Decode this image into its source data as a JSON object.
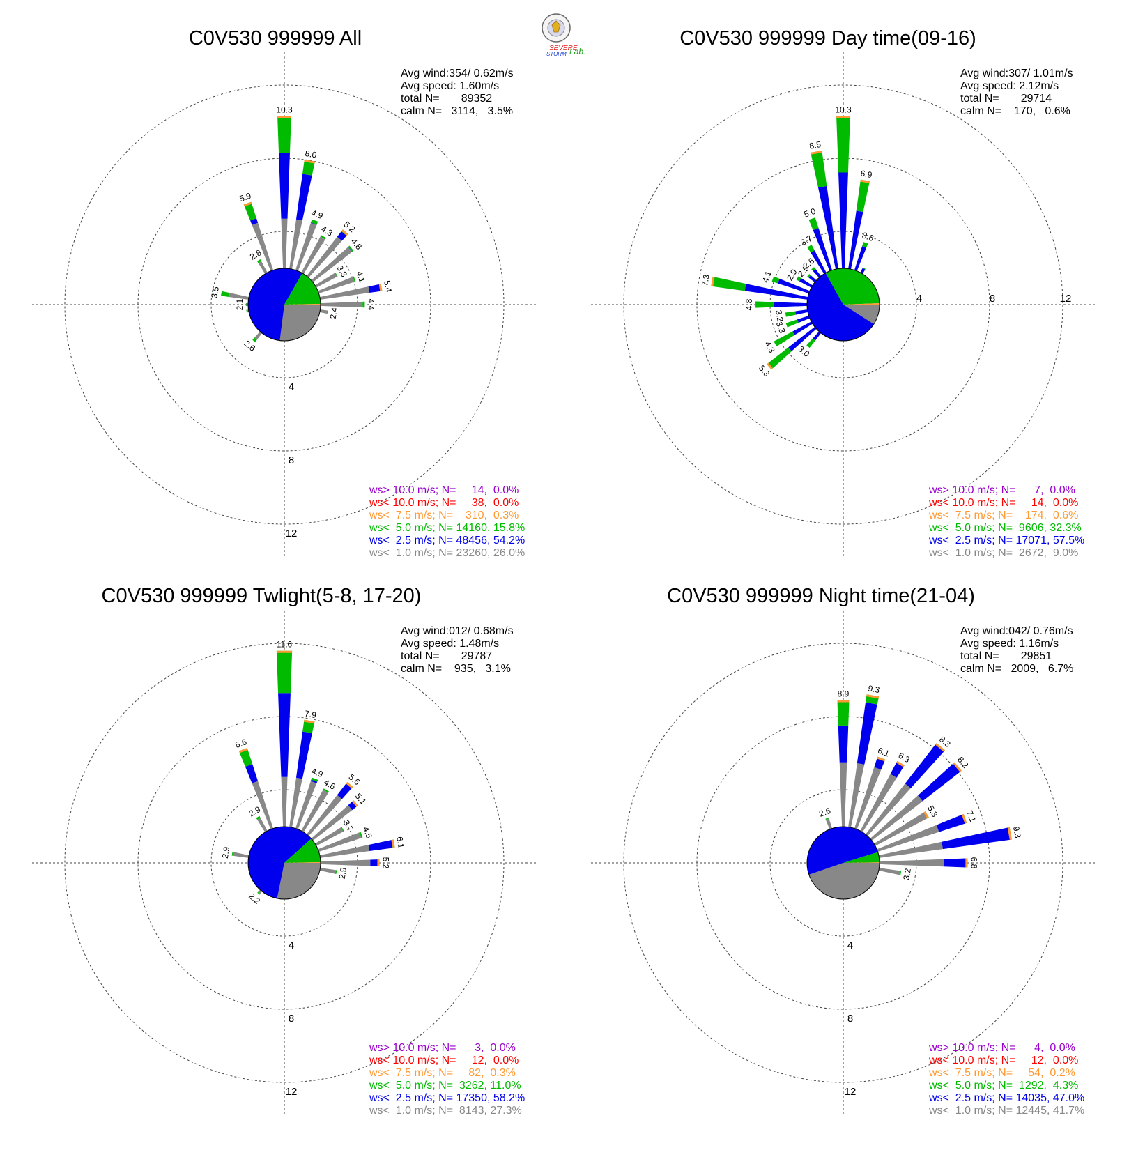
{
  "logo": {
    "line1": "SEVERE",
    "line2": "STORM",
    "lab": "Lab.",
    "colors": [
      "#e02020",
      "#2040d0",
      "#20a020"
    ]
  },
  "legend_colors": {
    "ws_gt_10": "#9900cc",
    "ws_lt_10": "#ff0000",
    "ws_lt_7_5": "#ff9933",
    "ws_lt_5": "#00bb00",
    "ws_lt_2_5": "#0000ee",
    "ws_lt_1": "#888888"
  },
  "chart_data": [
    {
      "type": "wind-rose",
      "title": "C0V530 999999 All",
      "rings": [
        4,
        8,
        12
      ],
      "ring_labels": [
        "4",
        "8",
        "12"
      ],
      "ring_label_axis": "south",
      "stats": [
        "Avg wind:354/ 0.62m/s",
        "Avg speed: 1.60m/s",
        "total N=       89352",
        "calm N=   3114,   3.5%"
      ],
      "legend": [
        {
          "text": "ws> 10.0 m/s; N=     14,  0.0%",
          "color": "#9900cc"
        },
        {
          "text": "ws< 10.0 m/s; N=     38,  0.0%",
          "color": "#ff0000"
        },
        {
          "text": "ws<  7.5 m/s; N=    310,  0.3%",
          "color": "#ff9933"
        },
        {
          "text": "ws<  5.0 m/s; N= 14160, 15.8%",
          "color": "#00bb00"
        },
        {
          "text": "ws<  2.5 m/s; N= 48456, 54.2%",
          "color": "#0000ee"
        },
        {
          "text": "ws<  1.0 m/s; N= 23260, 26.0%",
          "color": "#888888"
        }
      ],
      "center_pie_percent": [
        26.0,
        54.2,
        15.8,
        0.3,
        0.0,
        0.0
      ],
      "directions_deg": [
        0,
        10,
        20,
        30,
        40,
        50,
        60,
        70,
        80,
        90,
        100,
        110,
        120,
        130,
        140,
        150,
        160,
        170,
        180,
        190,
        200,
        210,
        220,
        230,
        240,
        250,
        260,
        270,
        280,
        290,
        300,
        310,
        320,
        330,
        340,
        350
      ],
      "totals": [
        10.3,
        8.0,
        4.9,
        4.3,
        5.2,
        4.8,
        3.3,
        4.1,
        5.4,
        4.4,
        2.4,
        1.7,
        1.5,
        1.3,
        1.3,
        1.2,
        1.2,
        1.2,
        1.2,
        1.3,
        1.4,
        1.8,
        2.6,
        1.9,
        1.8,
        1.7,
        2.1,
        2.1,
        3.5,
        1.6,
        1.6,
        1.7,
        2.0,
        2.8,
        5.9,
        1.8
      ],
      "green_fraction": [
        0.24,
        0.13,
        0.06,
        0.04,
        0.04,
        0.03,
        0.03,
        0.03,
        0.03,
        0.05,
        0.08,
        0.1,
        0.1,
        0.1,
        0.1,
        0.1,
        0.1,
        0.1,
        0.1,
        0.12,
        0.15,
        0.2,
        0.27,
        0.2,
        0.18,
        0.18,
        0.2,
        0.2,
        0.29,
        0.14,
        0.14,
        0.15,
        0.17,
        0.14,
        0.24,
        0.13
      ],
      "gray_radius": 4.7,
      "labels": [
        {
          "dir": 0,
          "text": "10.3"
        },
        {
          "dir": 10,
          "text": "8.0"
        },
        {
          "dir": 20,
          "text": "4.9"
        },
        {
          "dir": 30,
          "text": "4.3"
        },
        {
          "dir": 40,
          "text": "5.2"
        },
        {
          "dir": 50,
          "text": "4.8"
        },
        {
          "dir": 60,
          "text": "3.3"
        },
        {
          "dir": 70,
          "text": "4.1"
        },
        {
          "dir": 80,
          "text": "5.4"
        },
        {
          "dir": 90,
          "text": "4.4"
        },
        {
          "dir": 100,
          "text": "2.4"
        },
        {
          "dir": 220,
          "text": "2.6"
        },
        {
          "dir": 270,
          "text": "2.1"
        },
        {
          "dir": 280,
          "text": "3.5"
        },
        {
          "dir": 330,
          "text": "2.8"
        },
        {
          "dir": 340,
          "text": "5.9"
        }
      ]
    },
    {
      "type": "wind-rose",
      "title": "C0V530 999999 Day time(09-16)",
      "rings": [
        4,
        8,
        12
      ],
      "ring_labels": [
        "4",
        "8",
        "12"
      ],
      "ring_label_axis": "east",
      "stats": [
        "Avg wind:307/ 1.01m/s",
        "Avg speed: 2.12m/s",
        "total N=       29714",
        "calm N=    170,   0.6%"
      ],
      "legend": [
        {
          "text": "ws> 10.0 m/s; N=      7,  0.0%",
          "color": "#9900cc"
        },
        {
          "text": "ws< 10.0 m/s; N=     14,  0.0%",
          "color": "#ff0000"
        },
        {
          "text": "ws<  7.5 m/s; N=    174,  0.6%",
          "color": "#ff9933"
        },
        {
          "text": "ws<  5.0 m/s; N=  9606, 32.3%",
          "color": "#00bb00"
        },
        {
          "text": "ws<  2.5 m/s; N= 17071, 57.5%",
          "color": "#0000ee"
        },
        {
          "text": "ws<  1.0 m/s; N=  2672,  9.0%",
          "color": "#888888"
        }
      ],
      "center_pie_percent": [
        9.0,
        57.5,
        32.3,
        0.6,
        0.0,
        0.0
      ],
      "directions_deg": [
        0,
        10,
        20,
        30,
        40,
        50,
        60,
        70,
        80,
        90,
        100,
        110,
        120,
        130,
        140,
        150,
        160,
        170,
        180,
        190,
        200,
        210,
        220,
        230,
        240,
        250,
        260,
        270,
        280,
        290,
        300,
        310,
        320,
        330,
        340,
        350
      ],
      "totals": [
        10.3,
        6.9,
        3.6,
        2.3,
        1.6,
        1.4,
        1.2,
        1.2,
        1.3,
        1.3,
        1.3,
        1.3,
        1.2,
        1.2,
        1.2,
        1.2,
        1.2,
        1.3,
        1.3,
        1.4,
        1.5,
        2.0,
        3.0,
        5.3,
        4.3,
        3.3,
        3.2,
        4.8,
        7.3,
        4.1,
        2.9,
        2.5,
        2.6,
        3.7,
        5.0,
        8.5
      ],
      "green_fraction": [
        0.37,
        0.35,
        0.15,
        0.12,
        0.12,
        0.1,
        0.1,
        0.1,
        0.1,
        0.1,
        0.15,
        0.2,
        0.25,
        0.3,
        0.3,
        0.3,
        0.3,
        0.3,
        0.35,
        0.4,
        0.4,
        0.45,
        0.5,
        0.45,
        0.5,
        0.5,
        0.45,
        0.35,
        0.35,
        0.16,
        0.2,
        0.2,
        0.2,
        0.2,
        0.2,
        0.3
      ],
      "gray_radius": 1.8,
      "labels": [
        {
          "dir": 0,
          "text": "10.3"
        },
        {
          "dir": 20,
          "text": "3.6"
        },
        {
          "dir": 10,
          "text": "6.9"
        },
        {
          "dir": 220,
          "text": "3.0"
        },
        {
          "dir": 230,
          "text": "5.3"
        },
        {
          "dir": 240,
          "text": "4.3"
        },
        {
          "dir": 250,
          "text": "3.3"
        },
        {
          "dir": 260,
          "text": "3.2"
        },
        {
          "dir": 270,
          "text": "4.8"
        },
        {
          "dir": 280,
          "text": "7.3"
        },
        {
          "dir": 290,
          "text": "4.1"
        },
        {
          "dir": 300,
          "text": "2.9"
        },
        {
          "dir": 310,
          "text": "2.5"
        },
        {
          "dir": 320,
          "text": "2.6"
        },
        {
          "dir": 330,
          "text": "3.7"
        },
        {
          "dir": 340,
          "text": "5.0"
        },
        {
          "dir": 350,
          "text": "8.5"
        }
      ]
    },
    {
      "type": "wind-rose",
      "title": "C0V530 999999 Twlight(5-8, 17-20)",
      "rings": [
        4,
        8,
        12
      ],
      "ring_labels": [
        "4",
        "8",
        "12"
      ],
      "ring_label_axis": "south",
      "stats": [
        "Avg wind:012/ 0.68m/s",
        "Avg speed: 1.48m/s",
        "total N=       29787",
        "calm N=    935,   3.1%"
      ],
      "legend": [
        {
          "text": "ws> 10.0 m/s; N=      3,  0.0%",
          "color": "#9900cc"
        },
        {
          "text": "ws< 10.0 m/s; N=     12,  0.0%",
          "color": "#ff0000"
        },
        {
          "text": "ws<  7.5 m/s; N=     82,  0.3%",
          "color": "#ff9933"
        },
        {
          "text": "ws<  5.0 m/s; N=  3262, 11.0%",
          "color": "#00bb00"
        },
        {
          "text": "ws<  2.5 m/s; N= 17350, 58.2%",
          "color": "#0000ee"
        },
        {
          "text": "ws<  1.0 m/s; N=  8143, 27.3%",
          "color": "#888888"
        }
      ],
      "center_pie_percent": [
        27.3,
        58.2,
        11.0,
        0.3,
        0.0,
        0.0
      ],
      "directions_deg": [
        0,
        10,
        20,
        30,
        40,
        50,
        60,
        70,
        80,
        90,
        100,
        110,
        120,
        130,
        140,
        150,
        160,
        170,
        180,
        190,
        200,
        210,
        220,
        230,
        240,
        250,
        260,
        270,
        280,
        290,
        300,
        310,
        320,
        330,
        340,
        350
      ],
      "totals": [
        11.6,
        7.9,
        4.9,
        4.6,
        5.6,
        5.1,
        3.7,
        4.5,
        6.1,
        5.2,
        2.9,
        1.7,
        1.5,
        1.4,
        1.3,
        1.2,
        1.2,
        1.2,
        1.2,
        1.3,
        1.4,
        1.8,
        2.2,
        1.9,
        1.7,
        1.6,
        1.8,
        1.8,
        2.9,
        1.6,
        1.6,
        1.7,
        1.9,
        2.9,
        6.6,
        1.8
      ],
      "green_fraction": [
        0.24,
        0.11,
        0.04,
        0.03,
        0.03,
        0.03,
        0.03,
        0.03,
        0.03,
        0.03,
        0.07,
        0.1,
        0.1,
        0.1,
        0.1,
        0.1,
        0.1,
        0.1,
        0.1,
        0.12,
        0.15,
        0.2,
        0.25,
        0.2,
        0.18,
        0.18,
        0.15,
        0.15,
        0.1,
        0.12,
        0.12,
        0.12,
        0.14,
        0.12,
        0.2,
        0.12
      ],
      "gray_radius": 4.7,
      "labels": [
        {
          "dir": 0,
          "text": "11.6"
        },
        {
          "dir": 10,
          "text": "7.9"
        },
        {
          "dir": 20,
          "text": "4.9"
        },
        {
          "dir": 30,
          "text": "4.6"
        },
        {
          "dir": 40,
          "text": "5.6"
        },
        {
          "dir": 50,
          "text": "5.1"
        },
        {
          "dir": 60,
          "text": "3.7"
        },
        {
          "dir": 70,
          "text": "4.5"
        },
        {
          "dir": 80,
          "text": "6.1"
        },
        {
          "dir": 90,
          "text": "5.2"
        },
        {
          "dir": 100,
          "text": "2.9"
        },
        {
          "dir": 220,
          "text": "2.2"
        },
        {
          "dir": 280,
          "text": "2.9"
        },
        {
          "dir": 330,
          "text": "2.9"
        },
        {
          "dir": 340,
          "text": "6.6"
        }
      ]
    },
    {
      "type": "wind-rose",
      "title": "C0V530 999999 Night time(21-04)",
      "rings": [
        4,
        8,
        12
      ],
      "ring_labels": [
        "4",
        "8",
        "12"
      ],
      "ring_label_axis": "south",
      "stats": [
        "Avg wind:042/ 0.76m/s",
        "Avg speed: 1.16m/s",
        "total N=       29851",
        "calm N=   2009,   6.7%"
      ],
      "legend": [
        {
          "text": "ws> 10.0 m/s; N=      4,  0.0%",
          "color": "#9900cc"
        },
        {
          "text": "ws< 10.0 m/s; N=     12,  0.0%",
          "color": "#ff0000"
        },
        {
          "text": "ws<  7.5 m/s; N=     54,  0.2%",
          "color": "#ff9933"
        },
        {
          "text": "ws<  5.0 m/s; N=  1292,  4.3%",
          "color": "#00bb00"
        },
        {
          "text": "ws<  2.5 m/s; N= 14035, 47.0%",
          "color": "#0000ee"
        },
        {
          "text": "ws<  1.0 m/s; N= 12445, 41.7%",
          "color": "#888888"
        }
      ],
      "center_pie_percent": [
        41.7,
        47.0,
        4.3,
        0.2,
        0.0,
        0.0
      ],
      "directions_deg": [
        0,
        10,
        20,
        30,
        40,
        50,
        60,
        70,
        80,
        90,
        100,
        110,
        120,
        130,
        140,
        150,
        160,
        170,
        180,
        190,
        200,
        210,
        220,
        230,
        240,
        250,
        260,
        270,
        280,
        290,
        300,
        310,
        320,
        330,
        340,
        350
      ],
      "totals": [
        8.9,
        9.3,
        6.1,
        6.3,
        8.3,
        8.2,
        5.3,
        7.1,
        9.3,
        6.8,
        3.2,
        1.3,
        1.2,
        1.1,
        1.1,
        1.1,
        1.1,
        1.1,
        1.1,
        1.1,
        1.1,
        1.1,
        1.2,
        1.1,
        1.1,
        1.1,
        1.1,
        1.1,
        1.1,
        1.1,
        1.1,
        1.1,
        1.2,
        1.3,
        2.6,
        1.7
      ],
      "green_fraction": [
        0.2,
        0.06,
        0.02,
        0.01,
        0.01,
        0.01,
        0.01,
        0.01,
        0.01,
        0.02,
        0.05,
        0.05,
        0.05,
        0.05,
        0.05,
        0.05,
        0.05,
        0.05,
        0.05,
        0.05,
        0.05,
        0.05,
        0.05,
        0.05,
        0.05,
        0.05,
        0.05,
        0.05,
        0.05,
        0.05,
        0.05,
        0.05,
        0.05,
        0.05,
        0.08,
        0.05
      ],
      "gray_radius": 5.5,
      "labels": [
        {
          "dir": 0,
          "text": "8.9"
        },
        {
          "dir": 10,
          "text": "9.3"
        },
        {
          "dir": 20,
          "text": "6.1"
        },
        {
          "dir": 30,
          "text": "6.3"
        },
        {
          "dir": 40,
          "text": "8.3"
        },
        {
          "dir": 50,
          "text": "8.2"
        },
        {
          "dir": 60,
          "text": "5.3"
        },
        {
          "dir": 70,
          "text": "7.1"
        },
        {
          "dir": 80,
          "text": "9.3"
        },
        {
          "dir": 90,
          "text": "6.8"
        },
        {
          "dir": 100,
          "text": "3.2"
        },
        {
          "dir": 340,
          "text": "2.6"
        }
      ]
    }
  ]
}
